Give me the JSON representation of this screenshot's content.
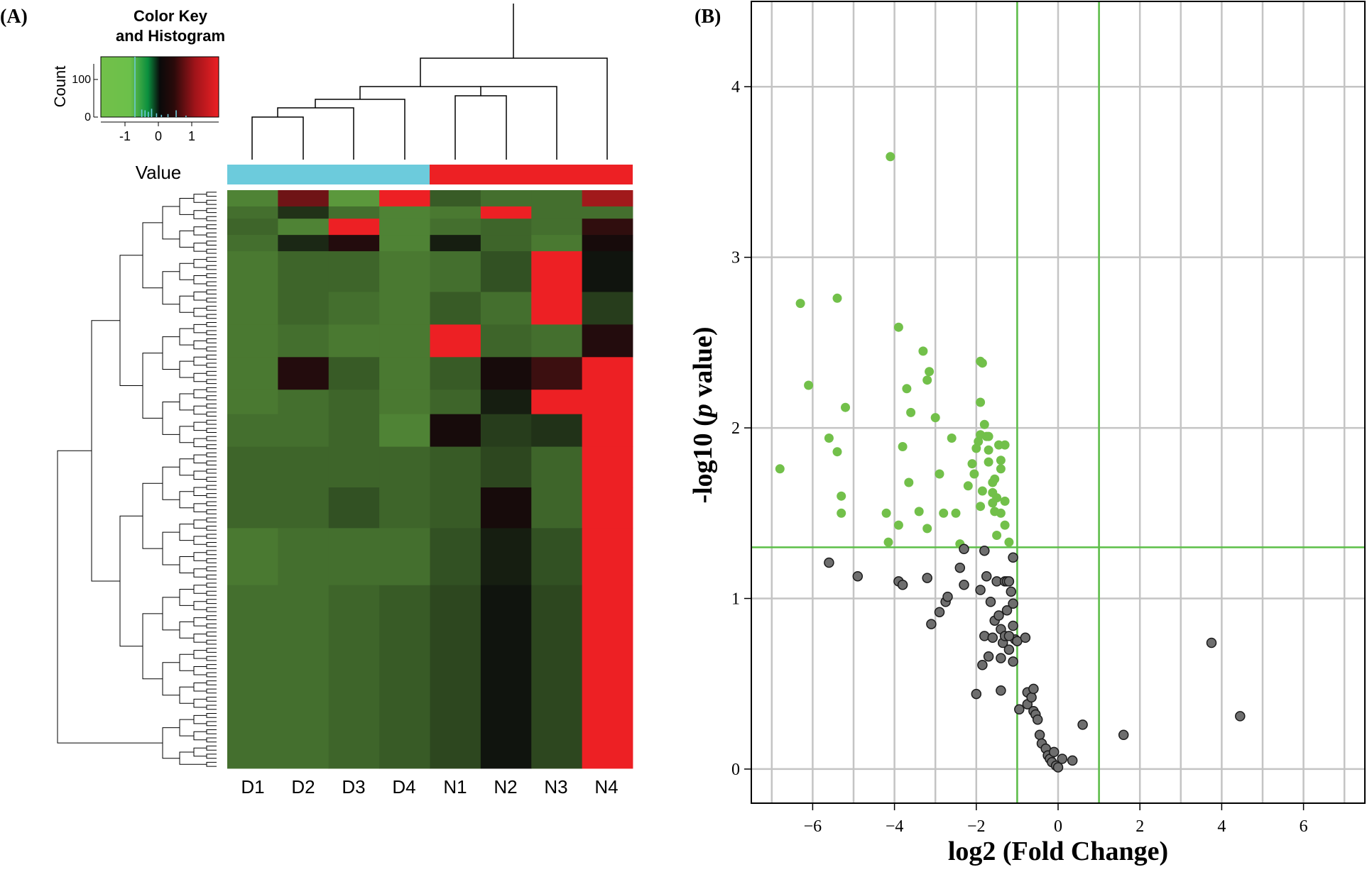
{
  "panel_a": {
    "label": "(A)",
    "key_title_line1": "Color Key",
    "key_title_line2": "and Histogram",
    "key_ylabel": "Count",
    "key_xlabel": "Value",
    "key_yticks": [
      "0",
      "100"
    ],
    "key_xticks": [
      "-1",
      "0",
      "1"
    ],
    "samples": [
      "D1",
      "D2",
      "D3",
      "D4",
      "N1",
      "N2",
      "N3",
      "N4"
    ],
    "group_colors": {
      "D": "#6ccbdc",
      "N": "#ed2024"
    }
  },
  "panel_b": {
    "label": "(B)",
    "xlabel": "log2 (Fold Change)",
    "ylabel_part1": "-log10 (",
    "ylabel_p": "p",
    "ylabel_part2": " value)",
    "xticks": [
      "−6",
      "−4",
      "−2",
      "0",
      "2",
      "4",
      "6"
    ],
    "yticks": [
      "0",
      "1",
      "2",
      "3",
      "4"
    ]
  },
  "chart_data": [
    {
      "type": "heatmap",
      "title": "Color Key and Histogram",
      "xlabel": "",
      "ylabel": "",
      "columns": [
        "D1",
        "D2",
        "D3",
        "D4",
        "N1",
        "N2",
        "N3",
        "N4"
      ],
      "groups": [
        {
          "name": "D",
          "columns": [
            "D1",
            "D2",
            "D3",
            "D4"
          ],
          "color": "#6ccbdc"
        },
        {
          "name": "N",
          "columns": [
            "N1",
            "N2",
            "N3",
            "N4"
          ],
          "color": "#ed2024"
        }
      ],
      "column_dendrogram": "((((D1,D2),D3),D4),((N1,N2),N3),N4)",
      "color_scale": {
        "min": -1.8,
        "max": 1.8,
        "low": "#72c04a",
        "mid": "#0a0a0a",
        "high": "#ed2024"
      },
      "key_histogram": {
        "xlabel": "Value",
        "ylabel": "Count",
        "ylim": [
          0,
          160
        ]
      },
      "row_blocks": [
        {
          "rows": 4,
          "values": [
            -1.2,
            0.8,
            -1.4,
            1.9,
            -0.8,
            -1.0,
            -1.0,
            1.2
          ]
        },
        {
          "rows": 3,
          "values": [
            -1.0,
            -0.4,
            -1.0,
            -1.2,
            -1.1,
            1.8,
            -1.0,
            -1.0
          ]
        },
        {
          "rows": 4,
          "values": [
            -0.9,
            -1.2,
            1.9,
            -1.2,
            -1.0,
            -0.9,
            -1.0,
            0.3
          ]
        },
        {
          "rows": 4,
          "values": [
            -1.0,
            -0.3,
            0.2,
            -1.2,
            -0.2,
            -0.9,
            -1.1,
            0.1
          ]
        },
        {
          "rows": 10,
          "values": [
            -1.1,
            -0.9,
            -0.9,
            -1.1,
            -1.0,
            -0.7,
            1.9,
            -0.1
          ]
        },
        {
          "rows": 8,
          "values": [
            -1.1,
            -0.9,
            -1.0,
            -1.1,
            -0.8,
            -1.0,
            1.9,
            -0.5
          ]
        },
        {
          "rows": 8,
          "values": [
            -1.1,
            -1.0,
            -1.1,
            -1.1,
            1.8,
            -0.9,
            -1.0,
            0.2
          ]
        },
        {
          "rows": 8,
          "values": [
            -1.1,
            0.2,
            -0.8,
            -1.1,
            -0.8,
            0.1,
            0.4,
            1.9
          ]
        },
        {
          "rows": 6,
          "values": [
            -1.1,
            -1.0,
            -0.9,
            -1.1,
            -0.9,
            -0.2,
            1.9,
            1.9
          ]
        },
        {
          "rows": 8,
          "values": [
            -1.0,
            -1.0,
            -0.9,
            -1.2,
            0.1,
            -0.5,
            -0.4,
            1.9
          ]
        },
        {
          "rows": 10,
          "values": [
            -0.9,
            -0.9,
            -0.9,
            -0.9,
            -0.8,
            -0.6,
            -0.9,
            1.9
          ]
        },
        {
          "rows": 10,
          "values": [
            -0.9,
            -0.9,
            -0.7,
            -0.9,
            -0.8,
            0.1,
            -0.9,
            1.9
          ]
        },
        {
          "rows": 14,
          "values": [
            -1.1,
            -1.0,
            -1.0,
            -1.0,
            -0.7,
            -0.2,
            -0.7,
            1.9
          ]
        },
        {
          "rows": 45,
          "values": [
            -1.0,
            -1.0,
            -0.9,
            -0.8,
            -0.6,
            -0.1,
            -0.6,
            1.9
          ]
        }
      ]
    },
    {
      "type": "scatter",
      "title": "",
      "xlabel": "log2 (Fold Change)",
      "ylabel": "-log10 (p value)",
      "xlim": [
        -7.5,
        7.5
      ],
      "ylim": [
        -0.2,
        4.5
      ],
      "thresholds": {
        "x": [
          -1,
          1
        ],
        "y": 1.3
      },
      "series": [
        {
          "name": "significant",
          "color": "#72c04a",
          "points": [
            [
              -6.8,
              1.76
            ],
            [
              -6.3,
              2.73
            ],
            [
              -6.1,
              2.25
            ],
            [
              -5.6,
              1.94
            ],
            [
              -5.4,
              2.76
            ],
            [
              -5.4,
              1.86
            ],
            [
              -5.3,
              1.6
            ],
            [
              -5.3,
              1.5
            ],
            [
              -5.2,
              2.12
            ],
            [
              -4.2,
              1.5
            ],
            [
              -4.1,
              3.59
            ],
            [
              -4.15,
              1.33
            ],
            [
              -3.9,
              2.59
            ],
            [
              -3.9,
              1.43
            ],
            [
              -3.8,
              1.89
            ],
            [
              -3.7,
              2.23
            ],
            [
              -3.65,
              1.68
            ],
            [
              -3.6,
              2.09
            ],
            [
              -3.4,
              1.51
            ],
            [
              -3.3,
              2.45
            ],
            [
              -3.2,
              1.41
            ],
            [
              -3.2,
              2.28
            ],
            [
              -3.15,
              2.33
            ],
            [
              -3.0,
              2.06
            ],
            [
              -2.9,
              1.73
            ],
            [
              -2.8,
              1.5
            ],
            [
              -2.6,
              1.94
            ],
            [
              -2.5,
              1.5
            ],
            [
              -2.4,
              1.32
            ],
            [
              -2.2,
              1.66
            ],
            [
              -2.1,
              1.79
            ],
            [
              -2.05,
              1.73
            ],
            [
              -2.0,
              1.88
            ],
            [
              -1.95,
              1.92
            ],
            [
              -1.9,
              2.39
            ],
            [
              -1.85,
              2.38
            ],
            [
              -1.9,
              2.15
            ],
            [
              -1.8,
              2.02
            ],
            [
              -1.9,
              1.96
            ],
            [
              -1.75,
              1.95
            ],
            [
              -1.7,
              1.95
            ],
            [
              -1.7,
              1.87
            ],
            [
              -1.9,
              1.54
            ],
            [
              -1.85,
              1.63
            ],
            [
              -1.7,
              1.8
            ],
            [
              -1.6,
              1.68
            ],
            [
              -1.6,
              1.62
            ],
            [
              -1.55,
              1.7
            ],
            [
              -1.5,
              1.59
            ],
            [
              -1.45,
              1.9
            ],
            [
              -1.4,
              1.81
            ],
            [
              -1.3,
              1.9
            ],
            [
              -1.4,
              1.76
            ],
            [
              -1.3,
              1.57
            ],
            [
              -1.5,
              1.37
            ],
            [
              -1.4,
              1.5
            ],
            [
              -1.3,
              1.43
            ],
            [
              -1.2,
              1.33
            ],
            [
              -1.55,
              1.51
            ],
            [
              -1.6,
              1.56
            ]
          ]
        },
        {
          "name": "not significant",
          "color": "#6e6e6e",
          "points": [
            [
              -5.6,
              1.21
            ],
            [
              -4.9,
              1.13
            ],
            [
              -3.9,
              1.1
            ],
            [
              -3.8,
              1.08
            ],
            [
              -3.2,
              1.12
            ],
            [
              -3.1,
              0.85
            ],
            [
              -2.9,
              0.92
            ],
            [
              -2.75,
              0.98
            ],
            [
              -2.7,
              1.01
            ],
            [
              -2.4,
              1.18
            ],
            [
              -2.3,
              1.29
            ],
            [
              -2.3,
              1.08
            ],
            [
              -2.0,
              0.44
            ],
            [
              -1.9,
              1.05
            ],
            [
              -1.85,
              0.61
            ],
            [
              -1.8,
              1.28
            ],
            [
              -1.75,
              1.13
            ],
            [
              -1.8,
              0.78
            ],
            [
              -1.7,
              0.66
            ],
            [
              -1.65,
              0.98
            ],
            [
              -1.6,
              0.77
            ],
            [
              -1.55,
              0.87
            ],
            [
              -1.5,
              1.1
            ],
            [
              -1.45,
              0.9
            ],
            [
              -1.4,
              0.65
            ],
            [
              -1.4,
              0.82
            ],
            [
              -1.35,
              0.74
            ],
            [
              -1.3,
              1.1
            ],
            [
              -1.3,
              0.78
            ],
            [
              -1.25,
              1.1
            ],
            [
              -1.25,
              0.93
            ],
            [
              -1.2,
              1.1
            ],
            [
              -1.2,
              0.7
            ],
            [
              -1.15,
              1.04
            ],
            [
              -1.1,
              1.24
            ],
            [
              -1.1,
              0.97
            ],
            [
              -1.1,
              0.63
            ],
            [
              -1.1,
              0.84
            ],
            [
              -1.05,
              0.76
            ],
            [
              -1.0,
              0.75
            ],
            [
              -0.95,
              0.35
            ],
            [
              -0.8,
              0.77
            ],
            [
              -0.75,
              0.38
            ],
            [
              -0.75,
              0.45
            ],
            [
              -0.65,
              0.42
            ],
            [
              -0.6,
              0.47
            ],
            [
              -0.6,
              0.34
            ],
            [
              -0.55,
              0.32
            ],
            [
              -0.5,
              0.29
            ],
            [
              -0.45,
              0.2
            ],
            [
              -0.4,
              0.15
            ],
            [
              -0.3,
              0.12
            ],
            [
              -0.25,
              0.08
            ],
            [
              -0.2,
              0.06
            ],
            [
              -0.15,
              0.04
            ],
            [
              -0.1,
              0.1
            ],
            [
              -0.05,
              0.02
            ],
            [
              0.0,
              0.01
            ],
            [
              0.1,
              0.06
            ],
            [
              0.35,
              0.05
            ],
            [
              0.6,
              0.26
            ],
            [
              1.6,
              0.2
            ],
            [
              3.75,
              0.74
            ],
            [
              4.45,
              0.31
            ],
            [
              -1.4,
              0.46
            ],
            [
              -1.2,
              0.78
            ]
          ]
        }
      ]
    }
  ]
}
